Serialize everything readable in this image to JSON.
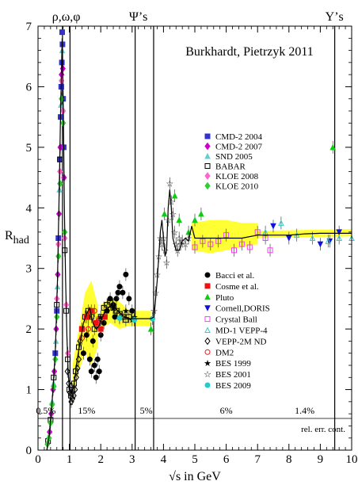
{
  "chart_data": {
    "type": "scatter",
    "title": "Burkhardt, Pietrzyk 2011",
    "xlabel": "√s in GeV",
    "ylabel": "R",
    "ylabel_sub": "had",
    "xlim": [
      0,
      10
    ],
    "ylim": [
      0,
      7
    ],
    "x_ticks": [
      "0",
      "1",
      "2",
      "3",
      "4",
      "5",
      "6",
      "7",
      "8",
      "9",
      "10"
    ],
    "y_ticks": [
      "0",
      "1",
      "2",
      "3",
      "4",
      "5",
      "6",
      "7"
    ],
    "resonance_labels": [
      {
        "text": "ρ,ω,φ",
        "x": 0.9
      },
      {
        "text": "Ψ’s",
        "x": 3.2
      },
      {
        "text": "Υ’s",
        "x": 9.45
      }
    ],
    "resonance_lines_x": [
      0.78,
      1.02,
      3.097,
      3.686,
      9.46
    ],
    "error_labels": [
      {
        "text": "0.5%",
        "x": 0.25
      },
      {
        "text": "15%",
        "x": 1.55
      },
      {
        "text": "5%",
        "x": 3.45
      },
      {
        "text": "6%",
        "x": 6.0
      },
      {
        "text": "1.4%",
        "x": 8.5
      }
    ],
    "rel_err_label": "rel. err. cont.",
    "legend_upper": [
      {
        "name": "CMD-2 2004",
        "marker": "square-filled",
        "color": "#3333cc"
      },
      {
        "name": "CMD-2 2007",
        "marker": "diamond-filled",
        "color": "#cc00cc"
      },
      {
        "name": "SND 2005",
        "marker": "triangle-filled",
        "color": "#66cccc"
      },
      {
        "name": "BABAR",
        "marker": "square-open",
        "color": "#000000"
      },
      {
        "name": "KLOE 2008",
        "marker": "diamond-filled",
        "color": "#ff66cc"
      },
      {
        "name": "KLOE 2010",
        "marker": "diamond-filled",
        "color": "#33cc33"
      }
    ],
    "legend_lower": [
      {
        "name": "Bacci et al.",
        "marker": "circle-filled",
        "color": "#000000"
      },
      {
        "name": "Cosme et al.",
        "marker": "square-filled",
        "color": "#ee1111"
      },
      {
        "name": "Pluto",
        "marker": "triangle-filled",
        "color": "#11cc11"
      },
      {
        "name": "Cornell,DORIS",
        "marker": "triangle-down-filled",
        "color": "#1111dd"
      },
      {
        "name": "Crystal Ball",
        "marker": "square-open",
        "color": "#ee44ee"
      },
      {
        "name": "MD-1 VEPP-4",
        "marker": "triangle-open",
        "color": "#33cccc"
      },
      {
        "name": "VEPP-2M ND",
        "marker": "diamond-open",
        "color": "#000000"
      },
      {
        "name": "DM2",
        "marker": "circle-cross",
        "color": "#ee1111"
      },
      {
        "name": "BES 1999",
        "marker": "star-filled",
        "color": "#22cc22"
      },
      {
        "name": "BES 2001",
        "marker": "star-open",
        "color": "#ee44ee"
      },
      {
        "name": "BES 2009",
        "marker": "circle-filled",
        "color": "#22cccc"
      }
    ],
    "band_color": "#ffff33",
    "fit_curve": {
      "x": [
        0.28,
        0.36,
        0.45,
        0.55,
        0.62,
        0.68,
        0.72,
        0.75,
        0.77,
        0.78,
        0.79,
        0.81,
        0.84,
        0.88,
        0.92,
        0.96,
        1.0,
        1.02,
        1.04,
        1.08,
        1.15,
        1.25,
        1.35,
        1.45,
        1.55,
        1.65,
        1.75,
        1.85,
        1.95,
        2.05,
        2.15,
        2.25,
        2.35,
        2.45,
        2.55,
        2.65,
        2.75,
        2.85,
        2.95,
        3.05,
        3.2,
        3.4,
        3.6,
        3.7,
        3.75,
        3.8,
        3.85,
        3.9,
        3.95,
        4.0,
        4.05,
        4.1,
        4.15,
        4.2,
        4.25,
        4.3,
        4.4,
        4.5,
        4.6,
        4.7,
        4.8,
        4.9,
        5.0,
        5.2,
        5.5,
        6.0,
        6.5,
        7.0,
        7.5,
        8.0,
        8.5,
        9.0,
        9.3,
        9.6,
        10.0
      ],
      "y": [
        0.0,
        0.25,
        0.8,
        1.6,
        2.8,
        4.4,
        5.6,
        6.3,
        6.8,
        6.6,
        6.2,
        5.5,
        4.0,
        2.8,
        1.9,
        1.3,
        1.0,
        1.05,
        0.95,
        0.95,
        1.1,
        1.5,
        1.8,
        2.1,
        2.25,
        2.35,
        2.1,
        2.0,
        2.05,
        2.2,
        2.3,
        2.35,
        2.4,
        2.35,
        2.3,
        2.25,
        2.2,
        2.18,
        2.17,
        2.17,
        2.17,
        2.17,
        2.17,
        2.2,
        2.5,
        2.8,
        3.2,
        3.6,
        3.8,
        3.5,
        3.2,
        3.3,
        4.0,
        4.3,
        4.0,
        3.5,
        3.3,
        3.3,
        3.45,
        3.5,
        3.45,
        3.7,
        3.5,
        3.5,
        3.5,
        3.5,
        3.5,
        3.55,
        3.55,
        3.55,
        3.57,
        3.58,
        3.58,
        3.58,
        3.58
      ]
    },
    "band_segments": [
      {
        "x": [
          1.1,
          1.3,
          1.5,
          1.7,
          1.9
        ],
        "lo": [
          0.8,
          1.3,
          1.6,
          1.4,
          1.7
        ],
        "hi": [
          1.4,
          2.0,
          2.6,
          2.8,
          2.4
        ]
      },
      {
        "x": [
          2.0,
          2.3,
          2.6,
          2.9,
          3.2,
          3.6
        ],
        "lo": [
          2.0,
          2.1,
          2.0,
          2.05,
          2.05,
          2.05
        ],
        "hi": [
          2.4,
          2.5,
          2.45,
          2.3,
          2.3,
          2.3
        ]
      },
      {
        "x": [
          4.9,
          5.5,
          6.0,
          6.5,
          7.0
        ],
        "lo": [
          3.3,
          3.25,
          3.3,
          3.35,
          3.4
        ],
        "hi": [
          3.75,
          3.8,
          3.8,
          3.75,
          3.75
        ]
      },
      {
        "x": [
          7.0,
          8.0,
          9.0,
          10.0
        ],
        "lo": [
          3.5,
          3.52,
          3.52,
          3.53
        ],
        "hi": [
          3.62,
          3.63,
          3.64,
          3.65
        ]
      }
    ],
    "datasets": [
      {
        "name": "CMD-2 2004",
        "x": [
          0.55,
          0.6,
          0.65,
          0.7,
          0.72,
          0.74,
          0.76,
          0.77,
          0.78,
          0.8,
          0.82
        ],
        "y": [
          1.6,
          2.3,
          3.5,
          4.8,
          5.5,
          6.0,
          6.4,
          6.9,
          6.7,
          5.8,
          5.0
        ]
      },
      {
        "name": "CMD-2 2007",
        "x": [
          0.37,
          0.42,
          0.48,
          0.52,
          0.58,
          0.63,
          0.67,
          0.71,
          0.75,
          0.79,
          0.83
        ],
        "y": [
          0.3,
          0.6,
          1.0,
          1.3,
          2.0,
          2.9,
          3.9,
          5.0,
          6.2,
          6.3,
          4.5
        ]
      },
      {
        "name": "SND 2005",
        "x": [
          0.45,
          0.5,
          0.57,
          0.62,
          0.68,
          0.73,
          0.77
        ],
        "y": [
          0.8,
          1.1,
          1.8,
          2.7,
          4.3,
          5.7,
          6.6
        ]
      },
      {
        "name": "BABAR",
        "x": [
          0.32,
          0.4,
          0.5,
          0.6,
          0.7,
          0.85,
          0.9,
          0.95,
          1.0,
          1.05,
          1.1,
          1.15,
          1.2,
          1.3,
          1.4,
          1.5,
          1.6,
          1.7,
          1.8,
          1.9,
          2.0,
          2.1,
          2.2,
          2.3,
          2.4,
          2.5,
          2.6,
          2.7,
          2.8,
          2.9
        ],
        "y": [
          0.15,
          0.5,
          1.2,
          2.4,
          4.8,
          3.3,
          2.3,
          1.5,
          1.0,
          0.9,
          1.0,
          1.1,
          1.3,
          1.7,
          2.0,
          2.2,
          2.3,
          2.2,
          2.0,
          2.1,
          2.2,
          2.35,
          2.4,
          2.45,
          2.35,
          2.3,
          2.25,
          2.2,
          2.15,
          2.2
        ]
      },
      {
        "name": "KLOE 2008",
        "x": [
          0.6,
          0.65,
          0.7,
          0.75,
          0.8,
          0.85,
          0.9,
          0.95
        ],
        "y": [
          2.5,
          3.4,
          4.6,
          6.1,
          5.6,
          3.5,
          2.4,
          1.6
        ]
      },
      {
        "name": "KLOE 2010",
        "x": [
          0.3,
          0.35,
          0.4,
          0.45,
          0.5,
          0.55,
          0.6,
          0.65,
          0.7,
          0.75,
          0.8,
          0.85
        ],
        "y": [
          0.1,
          0.2,
          0.45,
          0.75,
          1.05,
          1.5,
          2.2,
          3.2,
          4.4,
          5.8,
          5.4,
          3.6
        ]
      },
      {
        "name": "Bacci et al.",
        "x": [
          1.45,
          1.55,
          1.6,
          1.65,
          1.7,
          1.75,
          1.8,
          1.85,
          1.9,
          1.95,
          2.0,
          2.1,
          2.2,
          2.3,
          2.4,
          2.45,
          2.5,
          2.55,
          2.6,
          2.7,
          2.8,
          2.9,
          3.0
        ],
        "y": [
          1.6,
          1.9,
          2.2,
          1.5,
          1.3,
          1.8,
          1.4,
          1.2,
          1.5,
          1.3,
          1.9,
          2.1,
          2.3,
          2.5,
          2.4,
          2.2,
          2.5,
          2.6,
          2.7,
          2.6,
          2.9,
          2.5,
          2.3
        ]
      },
      {
        "name": "Cosme et al.",
        "x": [
          1.4,
          1.55,
          1.7,
          1.85,
          2.0,
          2.13
        ],
        "y": [
          2.0,
          2.2,
          2.3,
          2.1,
          2.0,
          2.2
        ]
      },
      {
        "name": "Pluto",
        "x": [
          3.6,
          4.03,
          4.36,
          4.5,
          4.8,
          5.0,
          5.2,
          9.4
        ],
        "y": [
          2.0,
          3.9,
          4.2,
          3.8,
          3.6,
          3.8,
          3.9,
          5.0
        ]
      },
      {
        "name": "Cornell,DORIS",
        "x": [
          7.5,
          8.0,
          9.0,
          9.3,
          9.6
        ],
        "y": [
          3.7,
          3.5,
          3.4,
          3.45,
          3.6
        ]
      },
      {
        "name": "Crystal Ball",
        "x": [
          5.0,
          5.25,
          5.5,
          5.75,
          6.0,
          6.25,
          6.5,
          6.75,
          7.0,
          7.25,
          7.4
        ],
        "y": [
          3.35,
          3.45,
          3.4,
          3.45,
          3.55,
          3.3,
          3.4,
          3.35,
          3.6,
          3.5,
          3.3
        ]
      },
      {
        "name": "MD-1 VEPP-4",
        "x": [
          7.25,
          7.75,
          8.25,
          8.75,
          9.25,
          9.6,
          10.0
        ],
        "y": [
          3.6,
          3.75,
          3.55,
          3.5,
          3.45,
          3.5,
          3.5
        ]
      },
      {
        "name": "VEPP-2M ND",
        "x": [
          0.94,
          0.98,
          1.02,
          1.06,
          1.1,
          1.14,
          1.18,
          1.22,
          1.26,
          1.3,
          1.34
        ],
        "y": [
          1.3,
          1.1,
          0.95,
          0.8,
          0.85,
          0.9,
          1.0,
          1.2,
          1.35,
          1.5,
          1.8
        ]
      },
      {
        "name": "DM2",
        "x": [
          1.4,
          1.6,
          1.8,
          1.95
        ],
        "y": [
          1.85,
          2.0,
          2.3,
          2.15
        ]
      },
      {
        "name": "BES 1999",
        "x": [
          2.0,
          2.2,
          2.4,
          2.6,
          2.8,
          3.0,
          3.07
        ],
        "y": [
          2.2,
          2.3,
          2.35,
          2.2,
          2.3,
          2.15,
          2.2
        ]
      },
      {
        "name": "BES 2001",
        "x": [
          3.7,
          3.75,
          3.8,
          3.85,
          3.9,
          3.95,
          4.0,
          4.05,
          4.1,
          4.15,
          4.2,
          4.25,
          4.3,
          4.35,
          4.4,
          4.45,
          4.5,
          4.55,
          4.6,
          4.7,
          4.8
        ],
        "y": [
          2.3,
          2.6,
          2.9,
          3.2,
          3.5,
          3.4,
          3.5,
          3.3,
          3.1,
          3.8,
          4.4,
          4.1,
          3.9,
          3.6,
          3.4,
          3.3,
          3.5,
          3.4,
          3.45,
          3.4,
          3.5
        ]
      },
      {
        "name": "BES 2009",
        "x": [
          2.6,
          3.07,
          3.65
        ],
        "y": [
          2.18,
          2.15,
          2.17
        ]
      }
    ]
  }
}
